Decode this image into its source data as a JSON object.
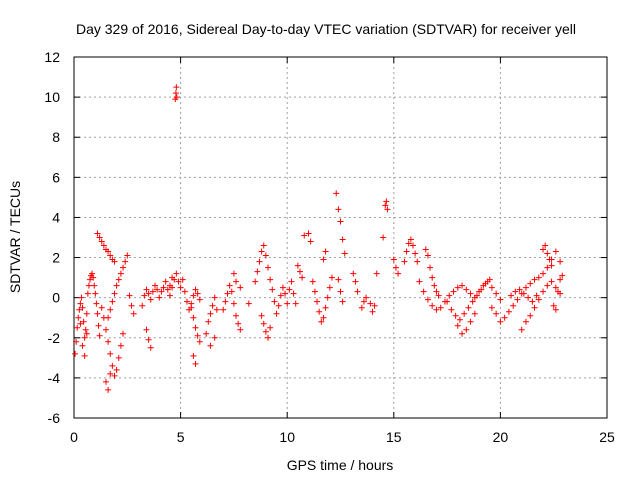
{
  "chart_data": {
    "type": "scatter",
    "title": "Day 329 of 2016, Sidereal Day-to-day VTEC variation (SDTVAR) for receiver yell",
    "xlabel": "GPS time / hours",
    "ylabel": "SDTVAR / TECUs",
    "xlim": [
      0,
      25
    ],
    "ylim": [
      -6,
      12
    ],
    "xticks": [
      0,
      5,
      10,
      15,
      20,
      25
    ],
    "yticks": [
      -6,
      -4,
      -2,
      0,
      2,
      4,
      6,
      8,
      10,
      12
    ],
    "x_tick_labels": [
      "0",
      "5",
      "10",
      "15",
      "20",
      "25"
    ],
    "y_tick_labels": [
      "-6",
      "-4",
      "-2",
      "0",
      "2",
      "4",
      "6",
      "8",
      "10",
      "12"
    ],
    "grid": true,
    "marker": "+",
    "color": "#ff0000",
    "series": [
      {
        "name": "SDTVAR",
        "x": [
          0.05,
          0.1,
          0.15,
          0.2,
          0.25,
          0.3,
          0.35,
          0.4,
          0.45,
          0.5,
          0.55,
          0.6,
          0.65,
          0.7,
          0.75,
          0.8,
          0.85,
          0.9,
          0.95,
          1.0,
          1.05,
          1.1,
          1.15,
          1.2,
          0.3,
          0.4,
          0.5,
          0.6,
          1.1,
          1.2,
          1.3,
          1.4,
          1.5,
          1.6,
          1.7,
          1.8,
          1.9,
          1.3,
          1.4,
          1.5,
          1.6,
          1.7,
          1.8,
          1.9,
          2.0,
          2.1,
          2.2,
          2.3,
          1.6,
          1.7,
          1.8,
          1.9,
          2.0,
          2.1,
          2.2,
          2.3,
          2.4,
          2.5,
          1.5,
          1.6,
          1.7,
          2.6,
          2.7,
          2.8,
          3.2,
          3.3,
          3.4,
          3.5,
          3.6,
          3.7,
          3.8,
          3.9,
          4.0,
          4.1,
          4.2,
          4.3,
          4.4,
          4.5,
          4.6,
          4.7,
          4.8,
          4.9,
          5.0,
          5.1,
          5.2,
          5.3,
          5.4,
          5.5,
          5.6,
          5.7,
          5.8,
          5.9,
          3.4,
          3.5,
          3.6,
          4.5,
          4.6,
          4.75,
          4.78,
          4.8,
          4.82,
          5.5,
          5.6,
          5.7,
          5.8,
          5.9,
          5.6,
          5.7,
          6.2,
          6.3,
          6.4,
          6.5,
          6.6,
          6.7,
          6.4,
          6.6,
          7.0,
          7.1,
          7.2,
          7.3,
          7.4,
          7.5,
          7.6,
          7.7,
          7.8,
          7.5,
          7.6,
          7.8,
          8.2,
          8.5,
          8.6,
          8.7,
          8.8,
          8.9,
          9.0,
          9.1,
          9.2,
          9.3,
          9.4,
          9.5,
          9.6,
          9.7,
          9.8,
          9.9,
          10.0,
          10.1,
          10.2,
          10.3,
          8.8,
          8.9,
          9.0,
          9.1,
          9.2,
          10.5,
          10.6,
          10.7,
          10.4,
          10.8,
          11.0,
          11.1,
          11.2,
          11.3,
          11.4,
          11.5,
          11.6,
          11.7,
          11.8,
          11.9,
          12.0,
          12.1,
          11.7,
          11.8,
          12.3,
          12.4,
          12.5,
          12.6,
          12.7,
          12.4,
          12.5,
          12.6,
          13.1,
          13.2,
          13.3,
          13.5,
          13.6,
          13.7,
          13.9,
          14.0,
          14.1,
          14.2,
          14.6,
          14.65,
          14.7,
          14.5,
          15.0,
          15.1,
          15.2,
          15.5,
          15.6,
          15.7,
          15.8,
          15.9,
          16.0,
          16.1,
          16.5,
          16.6,
          16.7,
          16.8,
          16.9,
          17.0,
          17.1,
          16.2,
          16.4,
          16.6,
          16.8,
          17.0,
          17.2,
          17.4,
          17.6,
          17.8,
          18.0,
          18.2,
          18.4,
          18.6,
          18.8,
          19.0,
          19.2,
          19.4,
          19.6,
          19.8,
          20.0,
          17.5,
          17.7,
          17.9,
          18.1,
          18.3,
          18.5,
          18.7,
          18.9,
          19.1,
          19.3,
          19.5,
          18.0,
          18.2,
          18.4,
          18.6,
          18.8,
          19.6,
          19.8,
          20.0,
          20.2,
          20.4,
          20.6,
          20.8,
          21.0,
          21.2,
          21.4,
          21.6,
          21.8,
          22.0,
          22.2,
          22.4,
          22.6,
          22.8,
          20.5,
          20.7,
          20.9,
          21.1,
          21.3,
          21.5,
          21.7,
          21.0,
          21.2,
          21.4,
          21.6,
          21.8,
          22.0,
          22.2,
          22.4,
          22.6,
          22.8,
          22.0,
          22.1,
          22.2,
          22.3,
          22.4,
          22.5,
          22.6,
          22.7,
          22.8,
          22.9
        ],
        "y": [
          -2.8,
          -2.2,
          -1.5,
          -1.0,
          -0.6,
          -0.3,
          0.0,
          -0.5,
          -1.2,
          -2.0,
          -1.6,
          -0.8,
          0.2,
          0.6,
          0.9,
          1.1,
          1.2,
          1.0,
          0.6,
          0.2,
          -0.3,
          -0.8,
          -1.4,
          -1.9,
          -1.3,
          -2.4,
          -2.9,
          -1.8,
          3.2,
          3.0,
          2.8,
          2.6,
          2.4,
          2.3,
          2.1,
          1.9,
          1.8,
          -0.5,
          -1.0,
          -1.6,
          -2.2,
          -2.8,
          -3.4,
          -3.9,
          -3.6,
          -3.0,
          -2.4,
          -1.8,
          -1.0,
          -0.6,
          -0.2,
          0.2,
          0.6,
          0.9,
          1.2,
          1.5,
          1.8,
          2.1,
          -4.2,
          -4.6,
          -3.8,
          0.1,
          -0.4,
          -0.8,
          -0.4,
          0.1,
          0.4,
          0.2,
          -0.1,
          0.3,
          0.6,
          0.4,
          0.0,
          0.3,
          0.5,
          0.8,
          0.4,
          0.1,
          0.5,
          0.9,
          1.2,
          0.8,
          0.5,
          0.9,
          0.3,
          -0.2,
          -0.6,
          -0.3,
          0.1,
          0.4,
          0.2,
          -0.1,
          -1.6,
          -2.1,
          -2.5,
          0.6,
          1.0,
          9.9,
          10.2,
          10.5,
          10.0,
          -0.5,
          -1.0,
          -1.5,
          -1.9,
          -2.2,
          -2.9,
          -3.3,
          -1.8,
          -1.2,
          -0.8,
          -0.4,
          0.0,
          -0.6,
          -2.4,
          -2.0,
          -0.6,
          -0.2,
          0.2,
          0.6,
          0.3,
          -0.3,
          -0.9,
          -1.3,
          -1.6,
          1.2,
          0.8,
          0.5,
          -0.3,
          0.8,
          1.3,
          1.8,
          2.3,
          2.6,
          2.1,
          1.5,
          0.9,
          0.4,
          -0.2,
          -0.8,
          -0.4,
          0.1,
          0.5,
          0.2,
          -0.3,
          0.4,
          0.8,
          0.2,
          -0.9,
          -1.3,
          -1.7,
          -2.0,
          -1.5,
          1.6,
          1.3,
          1.0,
          -0.3,
          3.1,
          3.2,
          2.8,
          0.8,
          0.3,
          -0.2,
          -0.7,
          -1.2,
          -1.0,
          -0.5,
          0.0,
          0.5,
          1.0,
          1.9,
          2.3,
          5.2,
          4.4,
          3.8,
          2.9,
          2.2,
          0.9,
          0.3,
          -0.2,
          1.2,
          0.8,
          0.3,
          -0.5,
          -0.2,
          0.0,
          -0.3,
          -0.7,
          -0.4,
          1.2,
          4.6,
          4.8,
          4.4,
          3.0,
          1.9,
          1.5,
          1.2,
          1.8,
          2.3,
          2.7,
          2.9,
          2.6,
          2.2,
          1.8,
          2.4,
          2.1,
          1.5,
          1.0,
          0.6,
          0.3,
          0.1,
          0.8,
          0.3,
          -0.1,
          -0.4,
          -0.6,
          -0.5,
          -0.2,
          0.1,
          0.3,
          0.5,
          0.6,
          0.4,
          0.2,
          0.0,
          0.3,
          0.6,
          0.8,
          0.5,
          0.2,
          -0.1,
          -0.2,
          -0.6,
          -0.9,
          -1.1,
          -0.8,
          -0.5,
          -0.2,
          0.1,
          0.4,
          0.7,
          0.9,
          -1.4,
          -1.8,
          -1.6,
          -1.2,
          -0.8,
          -0.5,
          -0.8,
          -1.2,
          -1.0,
          -0.7,
          -0.4,
          -0.1,
          0.2,
          0.5,
          0.7,
          0.9,
          1.0,
          1.2,
          1.5,
          1.9,
          2.3,
          1.8,
          0.1,
          0.3,
          0.4,
          0.2,
          0.0,
          -0.2,
          0.1,
          -1.6,
          -1.2,
          -0.9,
          -0.5,
          -0.1,
          0.3,
          0.6,
          0.8,
          0.5,
          0.2,
          2.4,
          2.6,
          2.2,
          1.9,
          1.6,
          -0.4,
          -0.6,
          0.3,
          0.9,
          1.1
        ]
      }
    ]
  }
}
